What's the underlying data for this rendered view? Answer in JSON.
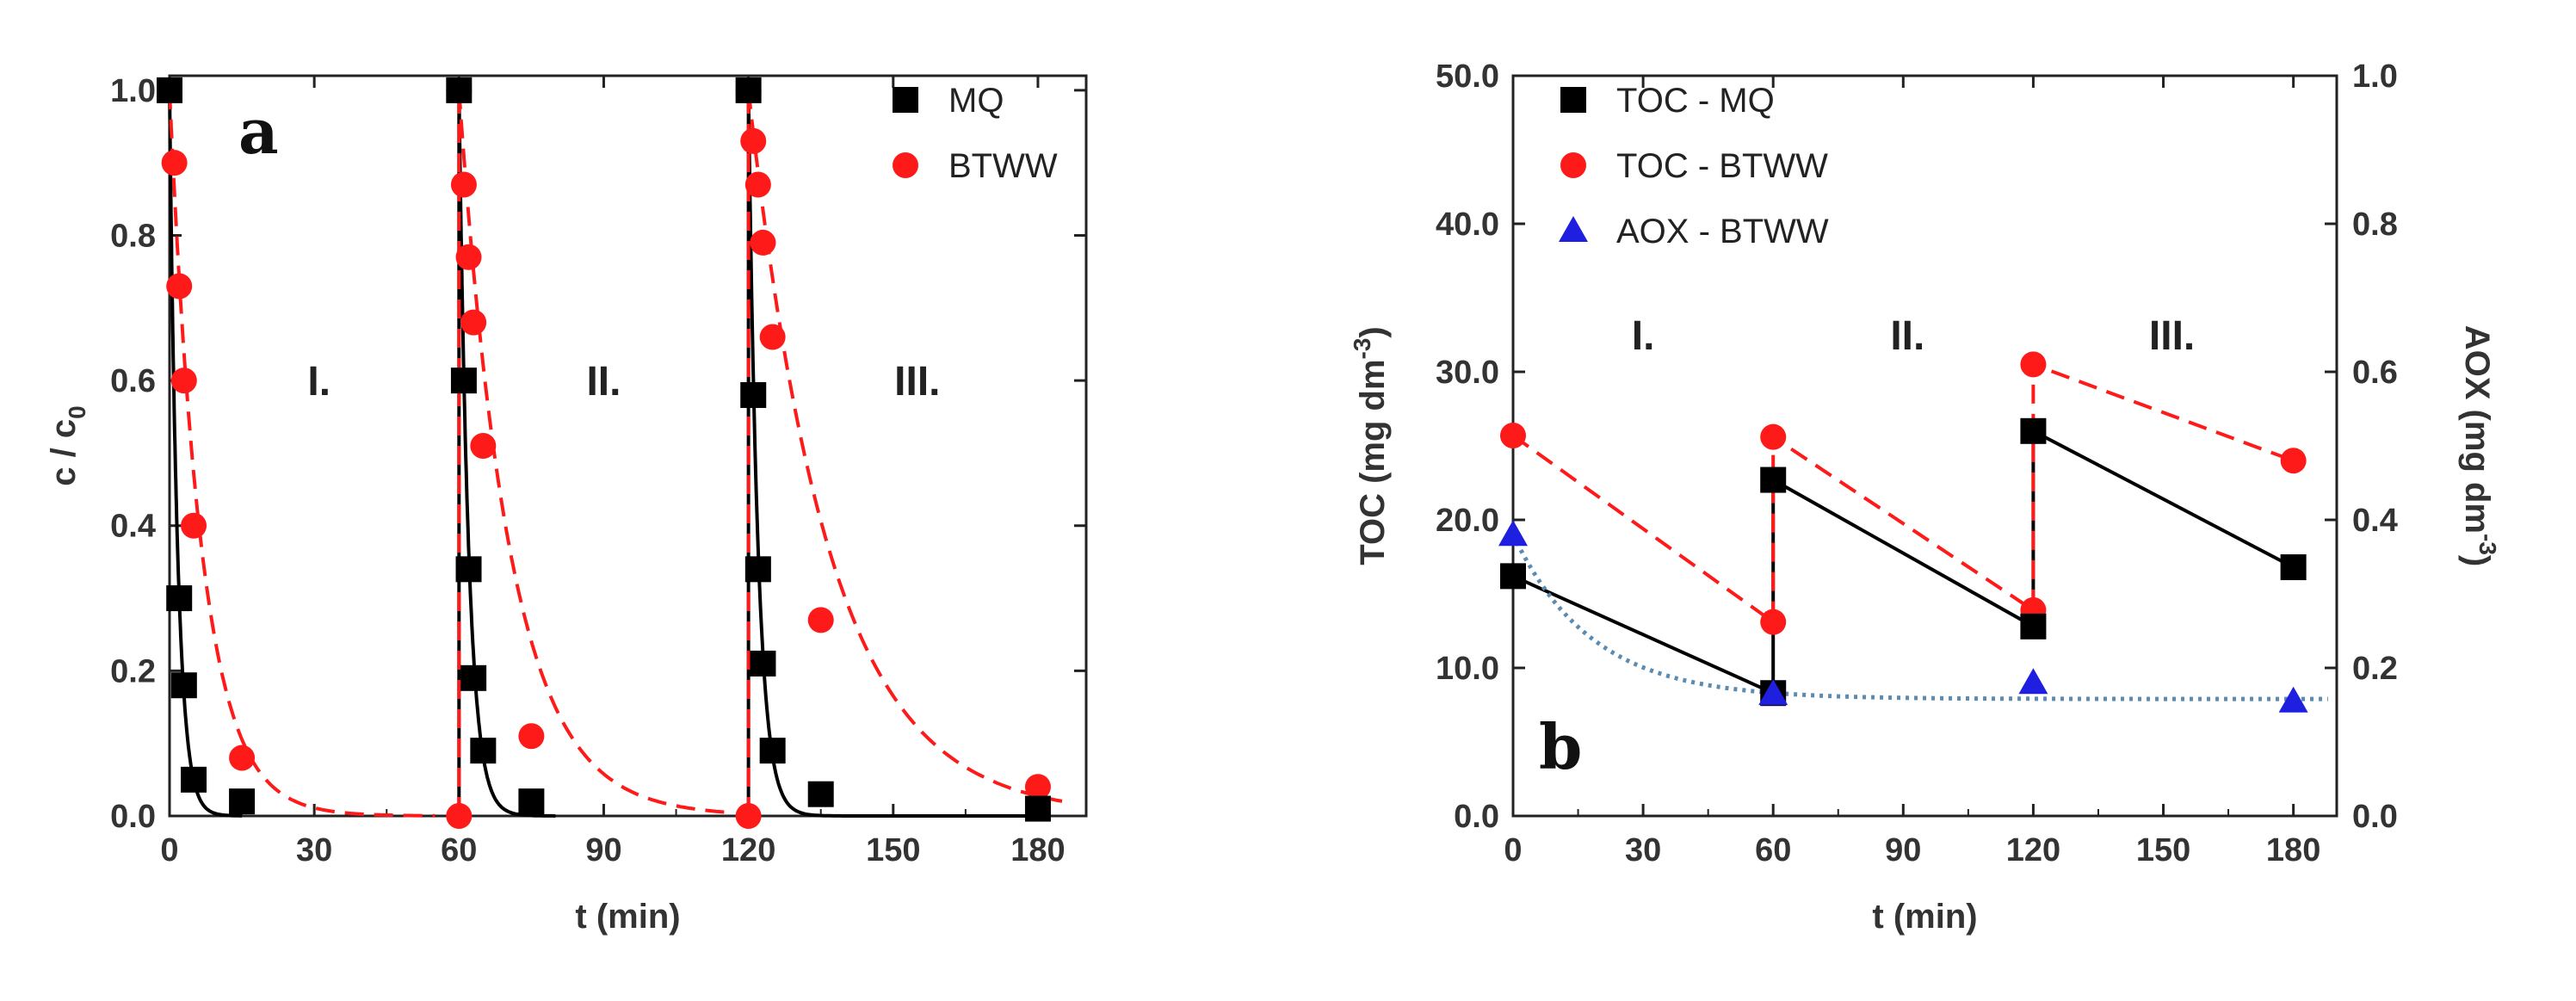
{
  "chart_data": [
    {
      "type": "line",
      "panel_label": "a",
      "xlabel": "t (min)",
      "ylabel": "c / c",
      "ylabel_subscript": "0",
      "xlim": [
        0,
        190
      ],
      "ylim": [
        0,
        1.02
      ],
      "xticks": [
        0,
        30,
        60,
        90,
        120,
        150,
        180
      ],
      "yticks": [
        0.0,
        0.2,
        0.4,
        0.6,
        0.8,
        1.0
      ],
      "xtick_labels": [
        "0",
        "30",
        "60",
        "90",
        "120",
        "150",
        "180"
      ],
      "ytick_labels": [
        "0.0",
        "0.2",
        "0.4",
        "0.6",
        "0.8",
        "1.0"
      ],
      "legend_position": "top-right",
      "region_labels": [
        {
          "text": "I.",
          "x": 31,
          "y": 0.58
        },
        {
          "text": "II.",
          "x": 90,
          "y": 0.58
        },
        {
          "text": "III.",
          "x": 155,
          "y": 0.58
        }
      ],
      "series": [
        {
          "name": "MQ",
          "color": "#000000",
          "marker": "square",
          "line_style": "solid",
          "points": [
            [
              0,
              1.0
            ],
            [
              2,
              0.3
            ],
            [
              3,
              0.18
            ],
            [
              5,
              0.05
            ],
            [
              15,
              0.02
            ],
            [
              60,
              1.0
            ],
            [
              61,
              0.6
            ],
            [
              62,
              0.34
            ],
            [
              63,
              0.19
            ],
            [
              65,
              0.09
            ],
            [
              75,
              0.02
            ],
            [
              120,
              1.0
            ],
            [
              121,
              0.58
            ],
            [
              122,
              0.34
            ],
            [
              123,
              0.21
            ],
            [
              125,
              0.09
            ],
            [
              135,
              0.03
            ],
            [
              180,
              0.01
            ]
          ],
          "fit_segments": [
            {
              "t0": 0,
              "t_end": 15,
              "k": 0.6
            },
            {
              "t0": 60,
              "t_end": 80,
              "k": 0.5
            },
            {
              "t0": 120,
              "t_end": 180,
              "k": 0.5
            }
          ]
        },
        {
          "name": "BTWW",
          "color": "#ff1a1a",
          "marker": "circle",
          "line_style": "dashed",
          "points": [
            [
              0,
              1.0
            ],
            [
              1,
              0.9
            ],
            [
              2,
              0.73
            ],
            [
              3,
              0.6
            ],
            [
              5,
              0.4
            ],
            [
              15,
              0.08
            ],
            [
              60,
              1.0
            ],
            [
              61,
              0.87
            ],
            [
              62,
              0.77
            ],
            [
              63,
              0.68
            ],
            [
              65,
              0.51
            ],
            [
              75,
              0.11
            ],
            [
              60,
              0.0
            ],
            [
              120,
              1.0
            ],
            [
              121,
              0.93
            ],
            [
              122,
              0.87
            ],
            [
              123,
              0.79
            ],
            [
              125,
              0.66
            ],
            [
              135,
              0.27
            ],
            [
              180,
              0.04
            ],
            [
              120,
              0.0
            ]
          ],
          "fit_segments": [
            {
              "t0": 0,
              "t_end": 55,
              "k": 0.15
            },
            {
              "t0": 60,
              "t_end": 115,
              "k": 0.095
            },
            {
              "t0": 120,
              "t_end": 185,
              "k": 0.06
            }
          ]
        }
      ]
    },
    {
      "type": "line",
      "panel_label": "b",
      "xlabel": "t (min)",
      "ylabel": "TOC (mg dm",
      "ylabel_superscript": "-3",
      "ylabel_close": ")",
      "y2label": "AOX (mg dm",
      "y2label_superscript": "-3",
      "y2label_close": ")",
      "xlim": [
        0,
        190
      ],
      "ylim": [
        0,
        50
      ],
      "y2lim": [
        0,
        1.0
      ],
      "xticks": [
        0,
        30,
        60,
        90,
        120,
        150,
        180
      ],
      "yticks": [
        0,
        10,
        20,
        30,
        40,
        50
      ],
      "y2ticks": [
        0,
        0.2,
        0.4,
        0.6,
        0.8,
        1.0
      ],
      "xtick_labels": [
        "0",
        "30",
        "60",
        "90",
        "120",
        "150",
        "180"
      ],
      "ytick_labels": [
        "0.0",
        "10.0",
        "20.0",
        "30.0",
        "40.0",
        "50.0"
      ],
      "y2tick_labels": [
        "0.0",
        "0.2",
        "0.4",
        "0.6",
        "0.8",
        "1.0"
      ],
      "legend_position": "top-left",
      "region_labels": [
        {
          "text": "I.",
          "x": 30,
          "y": 31.5
        },
        {
          "text": "II.",
          "x": 91,
          "y": 31.5
        },
        {
          "text": "III.",
          "x": 152,
          "y": 31.5
        }
      ],
      "series": [
        {
          "name": "TOC - MQ",
          "color": "#000000",
          "marker": "square",
          "line_style": "solid",
          "axis": "left",
          "points": [
            [
              0,
              16.2
            ],
            [
              60,
              8.3
            ],
            [
              60,
              22.7
            ],
            [
              120,
              12.8
            ],
            [
              120,
              26.0
            ],
            [
              180,
              16.8
            ]
          ]
        },
        {
          "name": "TOC - BTWW",
          "color": "#ff1a1a",
          "marker": "circle",
          "line_style": "dashed",
          "axis": "left",
          "points": [
            [
              0,
              25.7
            ],
            [
              60,
              13.1
            ],
            [
              60,
              25.6
            ],
            [
              120,
              13.9
            ],
            [
              120,
              30.5
            ],
            [
              180,
              24.0
            ]
          ]
        },
        {
          "name": "AOX - BTWW",
          "color": "#1f1fe0",
          "marker": "triangle",
          "line_style": "dotted",
          "line_color": "#5b8bb0",
          "axis": "right",
          "points": [
            [
              0,
              0.38
            ],
            [
              60,
              0.165
            ],
            [
              120,
              0.18
            ],
            [
              180,
              0.155
            ]
          ],
          "fit": {
            "plateau": 0.158,
            "amp": 0.222,
            "k": 0.055,
            "t_end": 188
          }
        }
      ]
    }
  ]
}
